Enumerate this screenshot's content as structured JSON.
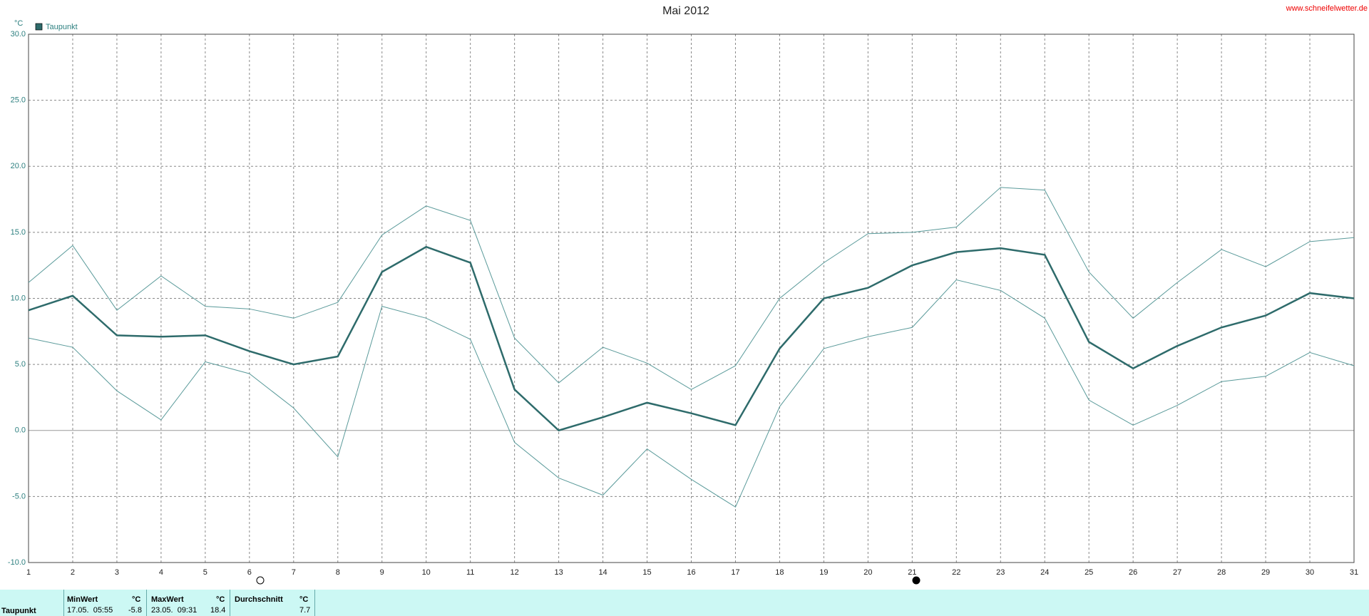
{
  "chart_data": {
    "type": "line",
    "title": "Mai 2012",
    "y_label": "°C",
    "source": "www.schneifelwetter.de",
    "x": [
      1,
      2,
      3,
      4,
      5,
      6,
      7,
      8,
      9,
      10,
      11,
      12,
      13,
      14,
      15,
      16,
      17,
      18,
      19,
      20,
      21,
      22,
      23,
      24,
      25,
      26,
      27,
      28,
      29,
      30,
      31
    ],
    "xlim": [
      1,
      31
    ],
    "xticks": [
      1,
      2,
      3,
      4,
      5,
      6,
      7,
      8,
      9,
      10,
      11,
      12,
      13,
      14,
      15,
      16,
      17,
      18,
      19,
      20,
      21,
      22,
      23,
      24,
      25,
      26,
      27,
      28,
      29,
      30,
      31
    ],
    "ylim": [
      -10,
      30
    ],
    "yticks": [
      {
        "value": -10,
        "label": "-10.0"
      },
      {
        "value": -5,
        "label": "-5.0"
      },
      {
        "value": 0,
        "label": "0.0"
      },
      {
        "value": 5,
        "label": "5.0"
      },
      {
        "value": 10,
        "label": "10.0"
      },
      {
        "value": 15,
        "label": "15.0"
      },
      {
        "value": 20,
        "label": "20.0"
      },
      {
        "value": 25,
        "label": "25.0"
      },
      {
        "value": 30,
        "label": "30.0"
      }
    ],
    "grid": true,
    "series": [
      {
        "name": "Taupunkt",
        "color": "#2e6b6b",
        "values": [
          9.1,
          10.2,
          7.2,
          7.1,
          7.2,
          6.0,
          5.0,
          5.6,
          12.0,
          13.9,
          12.7,
          3.1,
          0.0,
          1.0,
          2.1,
          1.3,
          0.4,
          6.2,
          10.0,
          10.8,
          12.5,
          13.5,
          13.8,
          13.3,
          6.7,
          4.7,
          6.4,
          7.8,
          8.7,
          10.4,
          10.0
        ]
      },
      {
        "color": "#5a9a9a",
        "values": [
          11.2,
          14.0,
          9.1,
          11.7,
          9.4,
          9.2,
          8.5,
          9.7,
          14.8,
          17.0,
          15.9,
          7.0,
          3.6,
          6.3,
          5.1,
          3.1,
          4.9,
          10.0,
          12.7,
          14.9,
          15.0,
          15.4,
          18.4,
          18.2,
          12.0,
          8.5,
          11.2,
          13.7,
          12.4,
          14.3,
          14.6
        ]
      },
      {
        "color": "#5a9a9a",
        "values": [
          7.0,
          6.3,
          3.0,
          0.8,
          5.2,
          4.3,
          1.7,
          -2.0,
          9.4,
          8.5,
          6.9,
          -0.9,
          -3.6,
          -4.9,
          -1.4,
          -3.7,
          -5.8,
          1.8,
          6.2,
          7.1,
          7.8,
          11.4,
          10.6,
          8.5,
          2.3,
          0.4,
          1.9,
          3.7,
          4.1,
          5.9,
          4.9
        ]
      }
    ]
  },
  "table": {
    "header": [
      "MinWert",
      "°C",
      "MaxWert",
      "°C",
      "Durchschnitt",
      "°C"
    ],
    "row": [
      "Taupunkt",
      "17.05.  05:55",
      -5.8,
      "23.05.  09:31",
      18.4,
      7.7
    ]
  }
}
